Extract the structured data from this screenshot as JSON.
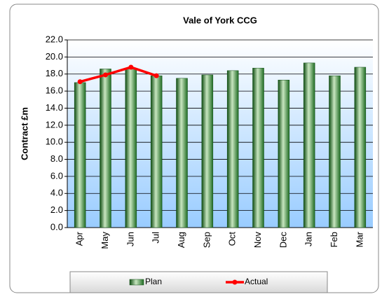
{
  "chart_data": {
    "type": "bar",
    "title": "Vale of York CCG",
    "y_label": "Contract £m",
    "categories": [
      "Apr",
      "May",
      "Jun",
      "Jul",
      "Aug",
      "Sep",
      "Oct",
      "Nov",
      "Dec",
      "Jan",
      "Feb",
      "Mar"
    ],
    "series": [
      {
        "name": "Plan",
        "type": "bar",
        "color": "#2e7d32",
        "values": [
          17.0,
          18.6,
          18.6,
          17.8,
          17.5,
          17.9,
          18.4,
          18.7,
          17.3,
          19.3,
          17.8,
          18.8
        ]
      },
      {
        "name": "Actual",
        "type": "line",
        "color": "#ff0000",
        "values": [
          17.1,
          17.9,
          18.8,
          17.8,
          null,
          null,
          null,
          null,
          null,
          null,
          null,
          null
        ]
      }
    ],
    "ylim": [
      0,
      22
    ],
    "yticks": [
      {
        "value": 0,
        "label": "0.0"
      },
      {
        "value": 2,
        "label": "2.0"
      },
      {
        "value": 4,
        "label": "4.0"
      },
      {
        "value": 6,
        "label": "6.0"
      },
      {
        "value": 8,
        "label": "8.0"
      },
      {
        "value": 10,
        "label": "10.0"
      },
      {
        "value": 12,
        "label": "12.0"
      },
      {
        "value": 14,
        "label": "14.0"
      },
      {
        "value": 16,
        "label": "16.0"
      },
      {
        "value": 18,
        "label": "18.0"
      },
      {
        "value": 20,
        "label": "20.0"
      },
      {
        "value": 22,
        "label": "22.0"
      }
    ],
    "grid": true,
    "legend": "bottom"
  }
}
